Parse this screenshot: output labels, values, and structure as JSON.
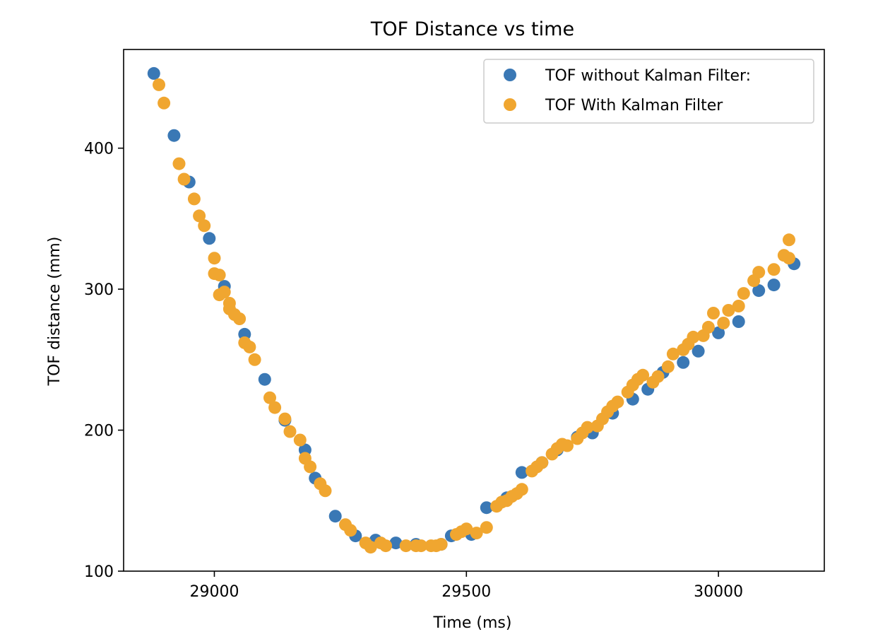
{
  "chart_data": {
    "type": "scatter",
    "title": "TOF Distance vs time",
    "xlabel": "Time (ms)",
    "ylabel": "TOF distance (mm)",
    "xlim": [
      28820,
      30210
    ],
    "ylim": [
      100,
      470
    ],
    "x_ticks": [
      29000,
      29500,
      30000
    ],
    "y_ticks": [
      100,
      200,
      300,
      400
    ],
    "legend_position": "top-right",
    "grid": false,
    "series": [
      {
        "name": "TOF without Kalman Filter:",
        "color": "#3a78b5",
        "points": [
          [
            28880,
            453
          ],
          [
            28920,
            409
          ],
          [
            28950,
            376
          ],
          [
            28990,
            336
          ],
          [
            29020,
            302
          ],
          [
            29060,
            268
          ],
          [
            29100,
            236
          ],
          [
            29140,
            207
          ],
          [
            29180,
            186
          ],
          [
            29200,
            166
          ],
          [
            29240,
            139
          ],
          [
            29280,
            125
          ],
          [
            29320,
            122
          ],
          [
            29360,
            120
          ],
          [
            29400,
            119
          ],
          [
            29450,
            119
          ],
          [
            29470,
            125
          ],
          [
            29510,
            126
          ],
          [
            29540,
            145
          ],
          [
            29580,
            152
          ],
          [
            29610,
            170
          ],
          [
            29650,
            177
          ],
          [
            29680,
            186
          ],
          [
            29720,
            195
          ],
          [
            29750,
            198
          ],
          [
            29790,
            212
          ],
          [
            29830,
            222
          ],
          [
            29860,
            229
          ],
          [
            29890,
            241
          ],
          [
            29930,
            248
          ],
          [
            29960,
            256
          ],
          [
            30000,
            269
          ],
          [
            30040,
            277
          ],
          [
            30080,
            299
          ],
          [
            30110,
            303
          ],
          [
            30150,
            318
          ]
        ]
      },
      {
        "name": "TOF With Kalman Filter",
        "color": "#f0a630",
        "points": [
          [
            28890,
            445
          ],
          [
            28900,
            432
          ],
          [
            28930,
            389
          ],
          [
            28940,
            378
          ],
          [
            28960,
            364
          ],
          [
            28970,
            352
          ],
          [
            28980,
            345
          ],
          [
            29000,
            322
          ],
          [
            29000,
            311
          ],
          [
            29010,
            310
          ],
          [
            29010,
            296
          ],
          [
            29020,
            298
          ],
          [
            29030,
            290
          ],
          [
            29030,
            286
          ],
          [
            29040,
            282
          ],
          [
            29050,
            279
          ],
          [
            29060,
            262
          ],
          [
            29070,
            259
          ],
          [
            29080,
            250
          ],
          [
            29110,
            223
          ],
          [
            29120,
            216
          ],
          [
            29140,
            208
          ],
          [
            29150,
            199
          ],
          [
            29170,
            193
          ],
          [
            29180,
            180
          ],
          [
            29190,
            174
          ],
          [
            29210,
            162
          ],
          [
            29220,
            157
          ],
          [
            29260,
            133
          ],
          [
            29270,
            129
          ],
          [
            29300,
            120
          ],
          [
            29310,
            117
          ],
          [
            29330,
            120
          ],
          [
            29340,
            118
          ],
          [
            29380,
            118
          ],
          [
            29400,
            118
          ],
          [
            29410,
            118
          ],
          [
            29430,
            118
          ],
          [
            29440,
            118
          ],
          [
            29450,
            119
          ],
          [
            29480,
            126
          ],
          [
            29490,
            128
          ],
          [
            29500,
            130
          ],
          [
            29520,
            127
          ],
          [
            29540,
            131
          ],
          [
            29560,
            146
          ],
          [
            29570,
            149
          ],
          [
            29580,
            150
          ],
          [
            29590,
            153
          ],
          [
            29600,
            155
          ],
          [
            29610,
            158
          ],
          [
            29630,
            171
          ],
          [
            29640,
            174
          ],
          [
            29650,
            177
          ],
          [
            29670,
            183
          ],
          [
            29680,
            187
          ],
          [
            29690,
            190
          ],
          [
            29700,
            189
          ],
          [
            29720,
            194
          ],
          [
            29730,
            198
          ],
          [
            29740,
            202
          ],
          [
            29760,
            203
          ],
          [
            29770,
            208
          ],
          [
            29780,
            213
          ],
          [
            29790,
            217
          ],
          [
            29800,
            220
          ],
          [
            29820,
            227
          ],
          [
            29830,
            232
          ],
          [
            29840,
            236
          ],
          [
            29850,
            239
          ],
          [
            29870,
            234
          ],
          [
            29880,
            238
          ],
          [
            29900,
            245
          ],
          [
            29910,
            254
          ],
          [
            29930,
            257
          ],
          [
            29940,
            261
          ],
          [
            29950,
            266
          ],
          [
            29970,
            267
          ],
          [
            29980,
            273
          ],
          [
            29990,
            283
          ],
          [
            30010,
            276
          ],
          [
            30020,
            285
          ],
          [
            30040,
            288
          ],
          [
            30050,
            297
          ],
          [
            30070,
            306
          ],
          [
            30080,
            312
          ],
          [
            30110,
            314
          ],
          [
            30130,
            324
          ],
          [
            30140,
            335
          ],
          [
            30140,
            322
          ]
        ]
      }
    ]
  }
}
